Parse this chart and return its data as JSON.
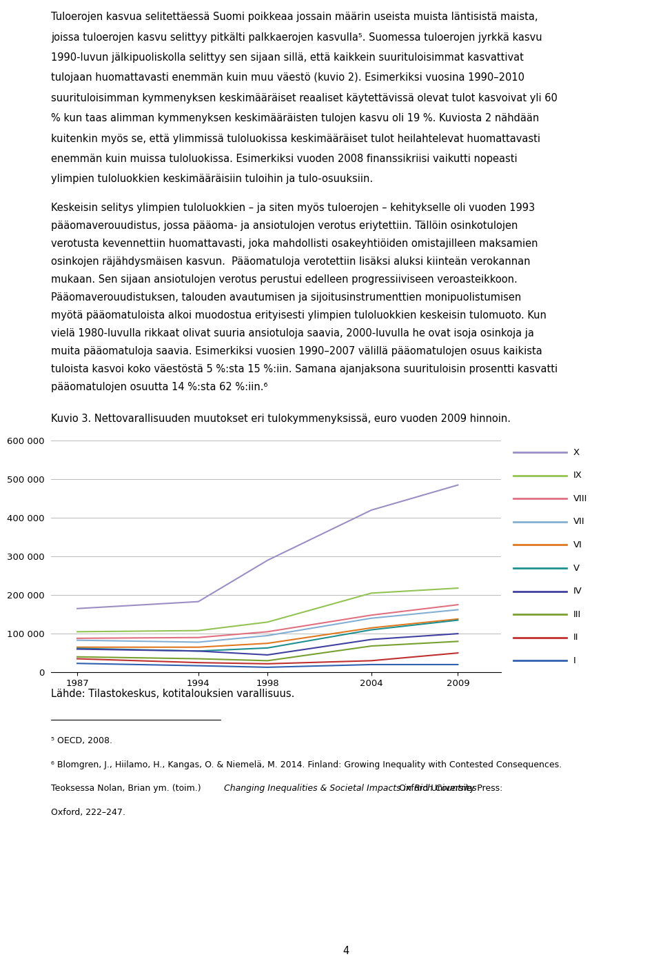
{
  "title_kuvio": "Kuvio 3. Nettovarallisuuden muutokset eri tulokymmenyksissä, euro vuoden 2009 hinnoin.",
  "source": "Lähde: Tilastokeskus, kotitalouksien varallisuus.",
  "page_number": "4",
  "years": [
    1987,
    1994,
    1998,
    2004,
    2009
  ],
  "series": {
    "X": {
      "color": "#9b8ec4",
      "values": [
        165000,
        183000,
        290000,
        420000,
        485000
      ]
    },
    "IX": {
      "color": "#92c353",
      "values": [
        105000,
        108000,
        130000,
        205000,
        218000
      ]
    },
    "VIII": {
      "color": "#e07080",
      "values": [
        88000,
        90000,
        105000,
        148000,
        175000
      ]
    },
    "VII": {
      "color": "#82afd3",
      "values": [
        83000,
        78000,
        95000,
        140000,
        162000
      ]
    },
    "VI": {
      "color": "#e07820",
      "values": [
        65000,
        65000,
        75000,
        115000,
        138000
      ]
    },
    "V": {
      "color": "#1f9090",
      "values": [
        62000,
        55000,
        63000,
        110000,
        135000
      ]
    },
    "IV": {
      "color": "#4040a0",
      "values": [
        60000,
        55000,
        45000,
        85000,
        100000
      ]
    },
    "III": {
      "color": "#78a030",
      "values": [
        40000,
        35000,
        30000,
        68000,
        80000
      ]
    },
    "II": {
      "color": "#c03030",
      "values": [
        35000,
        25000,
        22000,
        30000,
        50000
      ]
    },
    "I": {
      "color": "#3060b0",
      "values": [
        23000,
        17000,
        13000,
        20000,
        20000
      ]
    }
  },
  "ylim": [
    0,
    600000
  ],
  "yticks": [
    0,
    100000,
    200000,
    300000,
    400000,
    500000,
    600000
  ],
  "ytick_labels": [
    "0",
    "100 000",
    "200 000",
    "300 000",
    "400 000",
    "500 000",
    "600 000"
  ],
  "para1_lines": [
    "Tuloerojen kasvua selitettäessä Suomi poikkeaa jossain määrin useista muista läntisistä maista,",
    "joissa tuloerojen kasvu selittyy pitkälti palkkaerojen kasvulla⁵. Suomessa tuloerojen jyrkkä kasvu",
    "1990-luvun jälkipuoliskolla selittyy sen sijaan sillä, että kaikkein suurituloisimmat kasvattivat",
    "tulojaan huomattavasti enemmän kuin muu väestö (kuvio 2). Esimerkiksi vuosina 1990–2010",
    "suurituloisimman kymmenyksen keskimääräiset reaaliset käytettävissä olevat tulot kasvoivat yli 60",
    "% kun taas alimman kymmenyksen keskimääräisten tulojen kasvu oli 19 %. Kuviosta 2 nähdään",
    "kuitenkin myös se, että ylimmissä tuloluokissa keskimääräiset tulot heilahtelevat huomattavasti",
    "enemmän kuin muissa tuloluokissa. Esimerkiksi vuoden 2008 finanssikriisi vaikutti nopeasti",
    "ylimpien tuloluokkien keskimääräisiin tuloihin ja tulo-osuuksiin."
  ],
  "para2_lines": [
    "Keskeisin selitys ylimpien tuloluokkien – ja siten myös tuloerojen – kehitykselle oli vuoden 1993",
    "pääomaverouudistus, jossa pääoma- ja ansiotulojen verotus eriytettiin. Tällöin osinkotulojen",
    "verotusta kevennettiin huomattavasti, joka mahdollisti osakeyhtiöiden omistajilleen maksamien",
    "osinkojen räjähdysmäisen kasvun.  Pääomatuloja verotettiin lisäksi aluksi kiinteän verokannan",
    "mukaan. Sen sijaan ansiotulojen verotus perustui edelleen progressiiviseen veroasteikkoon.",
    "Pääomaverouudistuksen, talouden avautumisen ja sijoitusinstrumenttien monipuolistumisen",
    "myötä pääomatuloista alkoi muodostua erityisesti ylimpien tuloluokkien keskeisin tulomuoto. Kun",
    "vielä 1980-luvulla rikkaat olivat suuria ansiotuloja saavia, 2000-luvulla he ovat isoja osinkoja ja",
    "muita pääomatuloja saavia. Esimerkiksi vuosien 1990–2007 välillä pääomatulojen osuus kaikista",
    "tuloista kasvoi koko väestöstä 5 %:sta 15 %:iin. Samana ajanjaksona suurituloisin prosentti kasvatti",
    "pääomatulojen osuutta 14 %:sta 62 %:iin.⁶"
  ],
  "fn5_text": "⁵ OECD, 2008.",
  "fn6_pre": "⁶ Blomgren, J., Hiilamo, H., Kangas, O. & Niemelä, M. 2014. Finland: Growing Inequality with Contested Consequences.",
  "fn6_italic_pre": "Teoksessa Nolan, Brian ym. (toim.) ",
  "fn6_italic": "Changing Inequalities & Societal Impacts in Rich Countries",
  "fn6_post": ". Oxford University Press:",
  "fn6_end": "Oxford, 222–247."
}
